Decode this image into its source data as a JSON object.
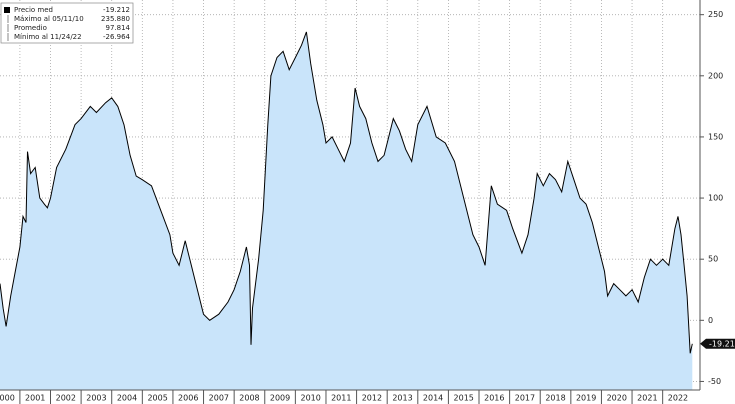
{
  "chart_data": {
    "type": "area",
    "color": "#000000",
    "fill": "#c9e4fa",
    "grid": true,
    "xlim": [
      2000.35,
      2023.22
    ],
    "xticks": [
      2000,
      2001,
      2002,
      2003,
      2004,
      2005,
      2006,
      2007,
      2008,
      2009,
      2010,
      2011,
      2012,
      2013,
      2014,
      2015,
      2016,
      2017,
      2018,
      2019,
      2020,
      2021,
      2022
    ],
    "ylim": [
      -57,
      262
    ],
    "yticks": [
      -50,
      0,
      50,
      100,
      150,
      200,
      250
    ],
    "legend": [
      {
        "label": "Precio med",
        "value": "-19.212"
      },
      {
        "label": "Máximo al 05/11/10",
        "value": "235.880"
      },
      {
        "label": "Promedio",
        "value": "97.814"
      },
      {
        "label": "Mínimo al 11/24/22",
        "value": "-26.964"
      }
    ],
    "x": [
      2000.35,
      2000.45,
      2000.55,
      2000.7,
      2000.85,
      2001.0,
      2001.1,
      2001.2,
      2001.25,
      2001.35,
      2001.5,
      2001.65,
      2001.8,
      2001.9,
      2002.0,
      2002.2,
      2002.5,
      2002.8,
      2003.0,
      2003.3,
      2003.5,
      2003.8,
      2004.0,
      2004.2,
      2004.4,
      2004.6,
      2004.8,
      2005.0,
      2005.3,
      2005.6,
      2005.9,
      2006.0,
      2006.2,
      2006.4,
      2006.6,
      2006.8,
      2007.0,
      2007.2,
      2007.5,
      2007.8,
      2008.0,
      2008.2,
      2008.4,
      2008.5,
      2008.55,
      2008.6,
      2008.8,
      2008.95,
      2009.1,
      2009.2,
      2009.4,
      2009.6,
      2009.8,
      2010.0,
      2010.2,
      2010.36,
      2010.5,
      2010.7,
      2010.9,
      2011.0,
      2011.2,
      2011.4,
      2011.6,
      2011.8,
      2011.95,
      2012.1,
      2012.3,
      2012.5,
      2012.7,
      2012.9,
      2013.0,
      2013.2,
      2013.4,
      2013.6,
      2013.8,
      2014.0,
      2014.3,
      2014.6,
      2014.9,
      2015.2,
      2015.5,
      2015.8,
      2016.0,
      2016.2,
      2016.4,
      2016.6,
      2016.9,
      2017.1,
      2017.4,
      2017.6,
      2017.8,
      2017.9,
      2018.1,
      2018.3,
      2018.5,
      2018.7,
      2018.9,
      2019.1,
      2019.3,
      2019.5,
      2019.7,
      2019.9,
      2020.1,
      2020.2,
      2020.4,
      2020.6,
      2020.8,
      2021.0,
      2021.2,
      2021.4,
      2021.6,
      2021.8,
      2022.0,
      2022.2,
      2022.4,
      2022.5,
      2022.6,
      2022.7,
      2022.8,
      2022.9,
      2022.97
    ],
    "values": [
      30,
      10,
      -5,
      20,
      40,
      60,
      85,
      80,
      138,
      120,
      125,
      100,
      95,
      92,
      100,
      125,
      140,
      160,
      165,
      175,
      170,
      178,
      182,
      175,
      160,
      135,
      118,
      115,
      110,
      90,
      70,
      55,
      45,
      65,
      45,
      25,
      5,
      0,
      5,
      15,
      25,
      40,
      60,
      45,
      -20,
      10,
      50,
      90,
      160,
      200,
      215,
      220,
      205,
      215,
      225,
      235.88,
      210,
      180,
      160,
      145,
      150,
      140,
      130,
      145,
      190,
      175,
      165,
      145,
      130,
      135,
      145,
      165,
      155,
      140,
      130,
      160,
      175,
      150,
      145,
      130,
      100,
      70,
      60,
      45,
      110,
      95,
      90,
      75,
      55,
      70,
      100,
      120,
      110,
      120,
      115,
      105,
      130,
      115,
      100,
      95,
      80,
      60,
      40,
      20,
      30,
      25,
      20,
      25,
      15,
      35,
      50,
      45,
      50,
      45,
      75,
      85,
      70,
      45,
      20,
      -26.964,
      -19.212
    ]
  }
}
